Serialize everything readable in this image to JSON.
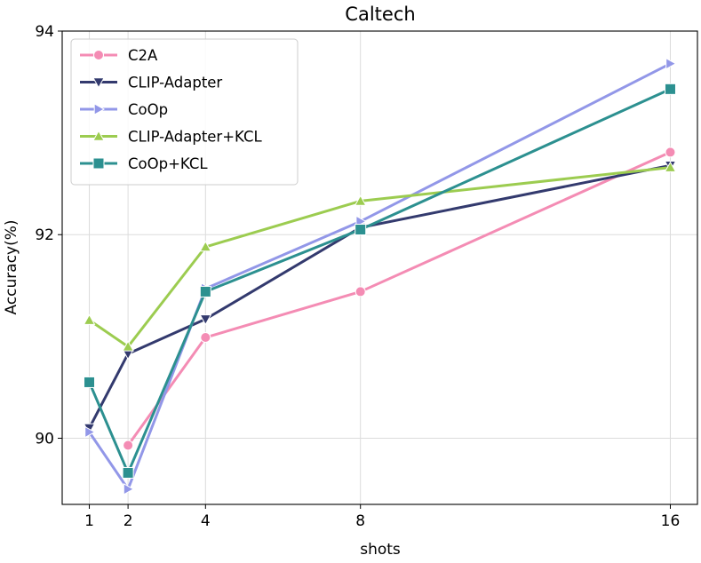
{
  "chart_data": {
    "type": "line",
    "title": "Caltech",
    "xlabel": "shots",
    "ylabel": "Accuracy(%)",
    "x": [
      1,
      2,
      4,
      8,
      16
    ],
    "xticks": [
      1,
      2,
      4,
      8,
      16
    ],
    "xlim": [
      0.3,
      16.7
    ],
    "yticks": [
      90,
      92,
      94
    ],
    "ylim": [
      89.35,
      94.0
    ],
    "grid": true,
    "legend_position": "upper-left",
    "series": [
      {
        "name": "C2A",
        "color": "#f48cb4",
        "marker": "circle",
        "values": [
          null,
          89.93,
          90.99,
          91.44,
          92.81
        ]
      },
      {
        "name": "CLIP-Adapter",
        "color": "#333a6e",
        "marker": "triangle-down",
        "values": [
          90.1,
          90.83,
          91.17,
          92.07,
          92.68
        ]
      },
      {
        "name": "CoOp",
        "color": "#9297e8",
        "marker": "triangle-right",
        "values": [
          90.06,
          89.5,
          91.47,
          92.13,
          93.68
        ]
      },
      {
        "name": "CLIP-Adapter+KCL",
        "color": "#9ccc50",
        "marker": "triangle-up",
        "values": [
          91.16,
          90.9,
          91.88,
          92.33,
          92.66
        ]
      },
      {
        "name": "CoOp+KCL",
        "color": "#2c9090",
        "marker": "square",
        "values": [
          90.55,
          89.66,
          91.44,
          92.05,
          93.43
        ]
      }
    ]
  }
}
